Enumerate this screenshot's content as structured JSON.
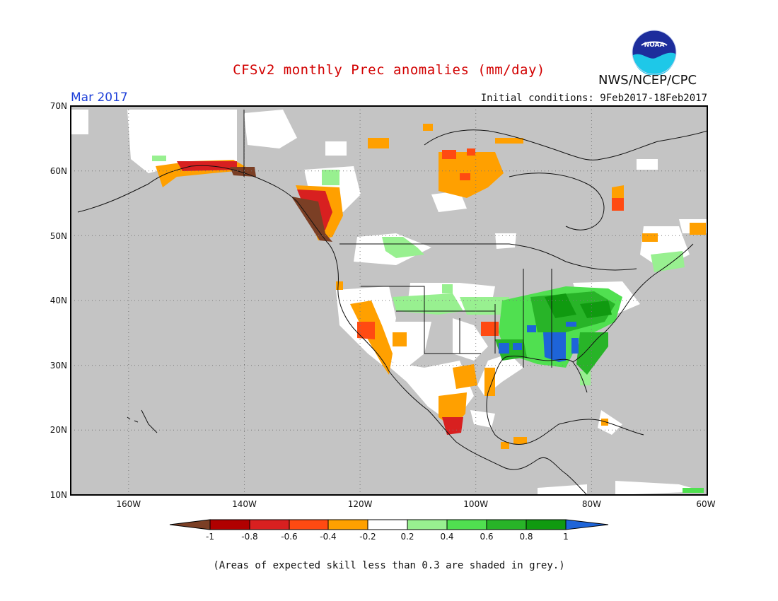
{
  "header": {
    "title": "CFSv2 monthly Prec anomalies (mm/day)",
    "agency": "NWS/NCEP/CPC",
    "logo_text": "NOAA",
    "valid_month": "Mar 2017",
    "initial_conditions": "Initial conditions: 9Feb2017-18Feb2017"
  },
  "map": {
    "lat_labels": [
      "70N",
      "60N",
      "50N",
      "40N",
      "30N",
      "20N",
      "10N"
    ],
    "lon_labels": [
      "160W",
      "140W",
      "120W",
      "100W",
      "80W",
      "60W"
    ]
  },
  "legend": {
    "tick_labels": [
      "-1",
      "-0.8",
      "-0.6",
      "-0.4",
      "-0.2",
      "0.2",
      "0.4",
      "0.6",
      "0.8",
      "1"
    ],
    "colors": [
      "#7b3f25",
      "#b00000",
      "#d82020",
      "#ff4a12",
      "#ffa000",
      "#ffffff",
      "#98f090",
      "#50e050",
      "#28b428",
      "#109a10",
      "#1e64d8"
    ]
  },
  "footnote": "(Areas of expected skill less than 0.3 are shaded in grey.)"
}
